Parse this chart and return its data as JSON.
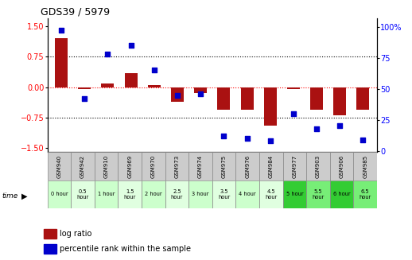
{
  "title": "GDS39 / 5979",
  "samples": [
    "GSM940",
    "GSM942",
    "GSM910",
    "GSM969",
    "GSM970",
    "GSM973",
    "GSM974",
    "GSM975",
    "GSM976",
    "GSM984",
    "GSM977",
    "GSM903",
    "GSM906",
    "GSM985"
  ],
  "time_labels": [
    "0 hour",
    "0.5\nhour",
    "1 hour",
    "1.5\nhour",
    "2 hour",
    "2.5\nhour",
    "3 hour",
    "3.5\nhour",
    "4 hour",
    "4.5\nhour",
    "5 hour",
    "5.5\nhour",
    "6 hour",
    "6.5\nhour"
  ],
  "log_ratio": [
    1.2,
    -0.05,
    0.1,
    0.35,
    0.05,
    -0.35,
    -0.15,
    -0.55,
    -0.55,
    -0.95,
    -0.05,
    -0.55,
    -0.7,
    -0.55
  ],
  "percentile": [
    97,
    42,
    78,
    85,
    65,
    45,
    46,
    12,
    10,
    8,
    30,
    18,
    20,
    9
  ],
  "time_colors": [
    "#ccffcc",
    "#e0ffe0",
    "#ccffcc",
    "#e0ffe0",
    "#ccffcc",
    "#e0ffe0",
    "#ccffcc",
    "#e0ffe0",
    "#ccffcc",
    "#e0ffe0",
    "#33cc33",
    "#77ee77",
    "#33cc33",
    "#77ee77"
  ],
  "bar_color": "#aa1111",
  "dot_color": "#0000cc",
  "ylim_left": [
    -1.6,
    1.7
  ],
  "ylim_right": [
    -1.07,
    107
  ],
  "yticks_left": [
    -1.5,
    -0.75,
    0,
    0.75,
    1.5
  ],
  "yticks_right": [
    0,
    25,
    50,
    75,
    100
  ],
  "legend_items": [
    "log ratio",
    "percentile rank within the sample"
  ],
  "legend_colors": [
    "#aa1111",
    "#0000cc"
  ]
}
